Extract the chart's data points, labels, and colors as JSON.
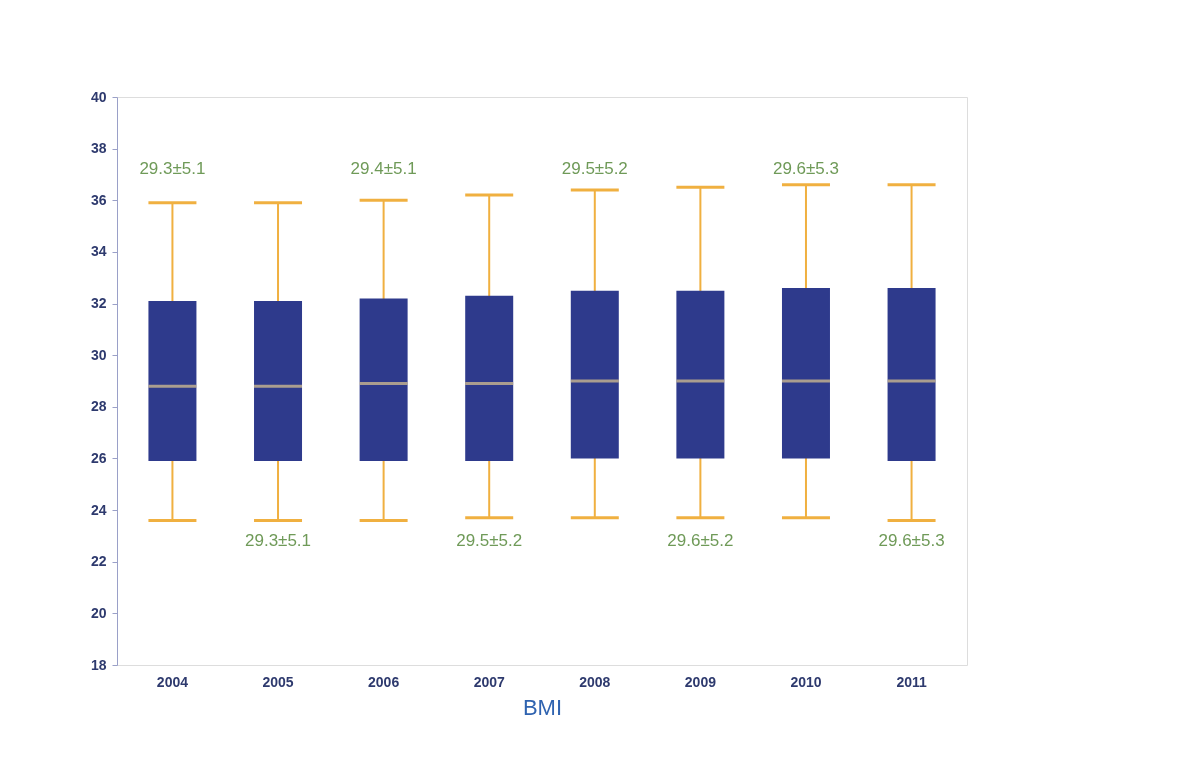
{
  "chart_data": {
    "type": "box",
    "xlabel": "BMI",
    "categories": [
      "2004",
      "2005",
      "2006",
      "2007",
      "2008",
      "2009",
      "2010",
      "2011"
    ],
    "series": [
      {
        "color": "#2e3a8c",
        "boxes": [
          {
            "low": 23.6,
            "q1": 25.9,
            "median": 28.8,
            "q3": 32.1,
            "high": 35.9
          },
          {
            "low": 23.6,
            "q1": 25.9,
            "median": 28.8,
            "q3": 32.1,
            "high": 35.9
          },
          {
            "low": 23.6,
            "q1": 25.9,
            "median": 28.9,
            "q3": 32.2,
            "high": 36.0
          },
          {
            "low": 23.7,
            "q1": 25.9,
            "median": 28.9,
            "q3": 32.3,
            "high": 36.2
          },
          {
            "low": 23.7,
            "q1": 26.0,
            "median": 29.0,
            "q3": 32.5,
            "high": 36.4
          },
          {
            "low": 23.7,
            "q1": 26.0,
            "median": 29.0,
            "q3": 32.5,
            "high": 36.5
          },
          {
            "low": 23.7,
            "q1": 26.0,
            "median": 29.0,
            "q3": 32.6,
            "high": 36.6
          },
          {
            "low": 23.6,
            "q1": 25.9,
            "median": 29.0,
            "q3": 32.6,
            "high": 36.6
          }
        ]
      }
    ],
    "ylim": [
      18,
      40
    ],
    "yticks": [
      18,
      20,
      22,
      24,
      26,
      28,
      30,
      32,
      34,
      36,
      38,
      40
    ],
    "grid": false,
    "annotations": [
      "29.3±5.1",
      "29.3±5.1",
      "29.4±5.1",
      "29.5±5.2",
      "29.5±5.2",
      "29.6±5.2",
      "29.6±5.3",
      "29.6±5.3"
    ]
  }
}
